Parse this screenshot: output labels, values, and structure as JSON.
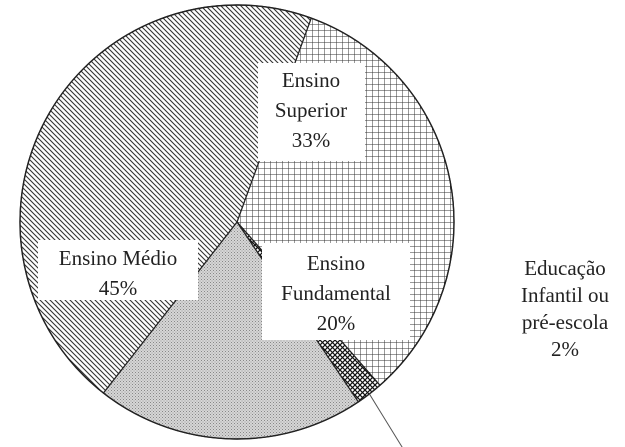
{
  "chart_data": {
    "type": "pie",
    "title": "",
    "slices": [
      {
        "name": "Ensino Superior",
        "lines": [
          "Ensino",
          "Superior",
          "33%"
        ],
        "value": 33,
        "pattern": "grid"
      },
      {
        "name": "Educação Infantil ou pré-escola",
        "lines": [
          "Educação",
          "Infantil ou",
          "pré-escola",
          "2%"
        ],
        "value": 2,
        "pattern": "crosshatch"
      },
      {
        "name": "Ensino Fundamental",
        "lines": [
          "Ensino",
          "Fundamental",
          "20%"
        ],
        "value": 20,
        "pattern": "dots"
      },
      {
        "name": "Ensino Médio",
        "lines": [
          "Ensino Médio",
          "45%"
        ],
        "value": 45,
        "pattern": "diagonal"
      }
    ]
  }
}
